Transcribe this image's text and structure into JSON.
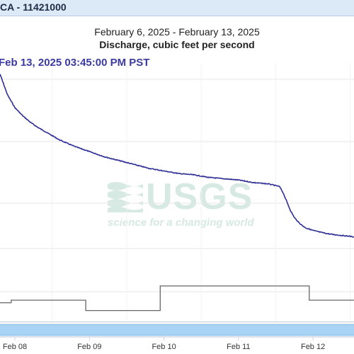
{
  "header": {
    "title": "CA - 11421000"
  },
  "tooltip": {
    "time": "Feb 13, 2025 03:45:00 PM PST"
  },
  "watermark": {
    "logo": "USGS",
    "tagline": "science for a changing world"
  },
  "colors": {
    "series": "#2e2e96",
    "secondary": "#666666",
    "header_bg": "#dce9f6",
    "navigator": "#a8d3f5"
  },
  "chart_data": {
    "type": "line",
    "title": "Discharge, cubic feet per second",
    "subtitle": "February 6, 2025 - February 13, 2025",
    "xlabel": "",
    "ylabel": "",
    "x_ticks": [
      "Feb 08",
      "Feb 09",
      "Feb 10",
      "Feb 11",
      "Feb 12"
    ],
    "xlim": [
      7.8,
      12.55
    ],
    "ylim": [
      0,
      100
    ],
    "grid": true,
    "series": [
      {
        "name": "",
        "x": [
          7.8,
          7.85,
          7.9,
          8.0,
          8.1,
          8.2,
          8.3,
          8.45,
          8.6,
          8.8,
          9.0,
          9.2,
          9.4,
          9.6,
          9.8,
          10.0,
          10.2,
          10.4,
          10.6,
          10.8,
          11.0,
          11.2,
          11.4,
          11.55,
          11.6,
          11.65,
          11.7,
          11.75,
          11.8,
          11.85,
          11.9,
          12.0,
          12.1,
          12.2,
          12.3,
          12.4,
          12.5,
          12.55
        ],
        "y": [
          96,
          92,
          88,
          83,
          80,
          77.5,
          75.5,
          73,
          70.5,
          68,
          66,
          64,
          62.5,
          61,
          59.5,
          58.5,
          57.5,
          57,
          56,
          55.5,
          55,
          54,
          53.5,
          52.5,
          50,
          46.5,
          43,
          40.5,
          38.8,
          37.5,
          36.5,
          35.5,
          34.8,
          34.2,
          33.8,
          33.5,
          33.2,
          33
        ]
      },
      {
        "name": "",
        "x": [
          7.8,
          7.95,
          7.95,
          8.95,
          8.95,
          9.95,
          9.95,
          11.95,
          11.95,
          12.55
        ],
        "y": [
          7.5,
          7.5,
          8.5,
          8.5,
          4.5,
          4.5,
          14,
          14,
          8.5,
          8.5
        ]
      }
    ]
  }
}
